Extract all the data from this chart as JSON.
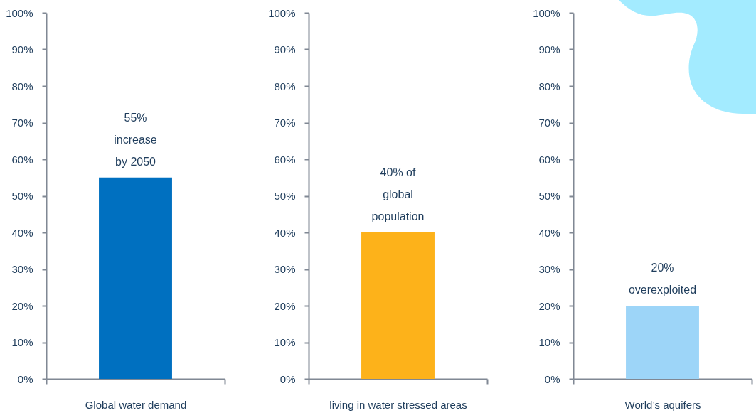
{
  "chart_data": [
    {
      "type": "bar",
      "categories": [
        "Global water demand"
      ],
      "values": [
        55
      ],
      "color": "#0070c0",
      "value_labels": [
        "55% increase by 2050"
      ],
      "ylim": [
        0,
        100
      ],
      "yticks": [
        {
          "value": 0,
          "label": "0%"
        },
        {
          "value": 10,
          "label": "10%"
        },
        {
          "value": 20,
          "label": "20%"
        },
        {
          "value": 30,
          "label": "30%"
        },
        {
          "value": 40,
          "label": "40%"
        },
        {
          "value": 50,
          "label": "50%"
        },
        {
          "value": 60,
          "label": "60%"
        },
        {
          "value": 70,
          "label": "70%"
        },
        {
          "value": 80,
          "label": "80%"
        },
        {
          "value": 90,
          "label": "90%"
        },
        {
          "value": 100,
          "label": "100%"
        }
      ]
    },
    {
      "type": "bar",
      "categories": [
        "living in water stressed areas"
      ],
      "values": [
        40
      ],
      "color": "#fdb21a",
      "value_labels": [
        "40% of global population"
      ],
      "ylim": [
        0,
        100
      ],
      "yticks": [
        {
          "value": 0,
          "label": "0%"
        },
        {
          "value": 10,
          "label": "10%"
        },
        {
          "value": 20,
          "label": "20%"
        },
        {
          "value": 30,
          "label": "30%"
        },
        {
          "value": 40,
          "label": "40%"
        },
        {
          "value": 50,
          "label": "50%"
        },
        {
          "value": 60,
          "label": "60%"
        },
        {
          "value": 70,
          "label": "70%"
        },
        {
          "value": 80,
          "label": "80%"
        },
        {
          "value": 90,
          "label": "90%"
        },
        {
          "value": 100,
          "label": "100%"
        }
      ]
    },
    {
      "type": "bar",
      "categories": [
        "World’s aquifers"
      ],
      "values": [
        20
      ],
      "color": "#9dd5f8",
      "value_labels": [
        "20% overexploited"
      ],
      "ylim": [
        0,
        100
      ],
      "yticks": [
        {
          "value": 0,
          "label": "0%"
        },
        {
          "value": 10,
          "label": "10%"
        },
        {
          "value": 20,
          "label": "20%"
        },
        {
          "value": 30,
          "label": "30%"
        },
        {
          "value": 40,
          "label": "40%"
        },
        {
          "value": 50,
          "label": "50%"
        },
        {
          "value": 60,
          "label": "60%"
        },
        {
          "value": 70,
          "label": "70%"
        },
        {
          "value": 80,
          "label": "80%"
        },
        {
          "value": 90,
          "label": "90%"
        },
        {
          "value": 100,
          "label": "100%"
        }
      ]
    }
  ]
}
